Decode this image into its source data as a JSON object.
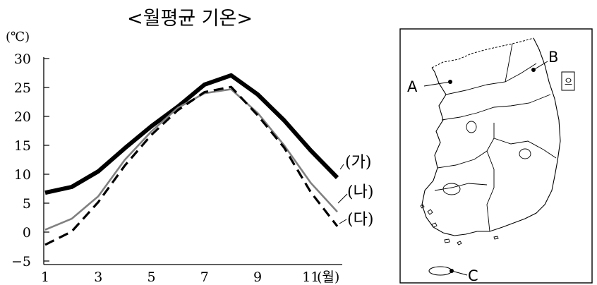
{
  "chart_data": {
    "type": "line",
    "title": "<월평균 기온>",
    "ylabel": "(℃)",
    "xlabel": "(월)",
    "ylim": [
      -5,
      30
    ],
    "yticks": [
      30,
      25,
      20,
      15,
      10,
      5,
      0,
      -5
    ],
    "xlim": [
      1,
      12
    ],
    "xticks": [
      "1",
      "3",
      "5",
      "7",
      "9",
      "11"
    ],
    "x": [
      1,
      2,
      3,
      4,
      5,
      6,
      7,
      8,
      9,
      10,
      11,
      12
    ],
    "grid": false,
    "series": [
      {
        "name": "(가)",
        "style": "thick-solid",
        "color": "#000000",
        "values": [
          6.8,
          7.8,
          10.5,
          14.5,
          18.3,
          21.7,
          25.5,
          27.1,
          23.8,
          19.3,
          14.1,
          9.4
        ]
      },
      {
        "name": "(나)",
        "style": "thin-solid",
        "color": "#808080",
        "values": [
          0.4,
          2.3,
          6.2,
          12.5,
          17.4,
          21.5,
          24.0,
          24.7,
          20.6,
          15.0,
          8.5,
          3.5
        ]
      },
      {
        "name": "(다)",
        "style": "dashed",
        "color": "#000000",
        "values": [
          -2.2,
          0.1,
          5.2,
          11.5,
          16.8,
          21.1,
          24.2,
          25.1,
          20.2,
          14.6,
          6.9,
          1.0
        ]
      }
    ]
  },
  "map": {
    "labels": {
      "a": "A",
      "b": "B",
      "c": "C"
    },
    "island_small": "으"
  }
}
